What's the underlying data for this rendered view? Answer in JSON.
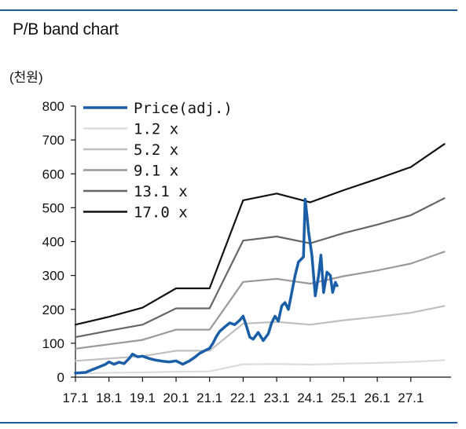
{
  "chart_data": {
    "type": "line",
    "title": "P/B band chart",
    "unit_label": "(천원)",
    "ylim": [
      0,
      800
    ],
    "y_ticks": [
      0,
      100,
      200,
      300,
      400,
      500,
      600,
      700,
      800
    ],
    "x_tick_labels": [
      "17.1",
      "18.1",
      "19.1",
      "20.1",
      "21.1",
      "22.1",
      "23.1",
      "24.1",
      "25.1",
      "26.1",
      "27.1"
    ],
    "xlim": [
      2017.0,
      2028.2
    ],
    "legend_position": "top-left",
    "grid": false,
    "series": [
      {
        "name": "Price(adj.)",
        "color": "#1a5ea8",
        "points": [
          [
            2017.0,
            12
          ],
          [
            2017.3,
            14
          ],
          [
            2017.5,
            22
          ],
          [
            2017.7,
            30
          ],
          [
            2017.9,
            38
          ],
          [
            2018.0,
            45
          ],
          [
            2018.15,
            38
          ],
          [
            2018.3,
            44
          ],
          [
            2018.45,
            40
          ],
          [
            2018.6,
            55
          ],
          [
            2018.7,
            68
          ],
          [
            2018.85,
            60
          ],
          [
            2019.0,
            62
          ],
          [
            2019.2,
            55
          ],
          [
            2019.4,
            50
          ],
          [
            2019.6,
            47
          ],
          [
            2019.8,
            45
          ],
          [
            2020.0,
            48
          ],
          [
            2020.2,
            38
          ],
          [
            2020.4,
            48
          ],
          [
            2020.55,
            58
          ],
          [
            2020.7,
            70
          ],
          [
            2020.85,
            78
          ],
          [
            2021.0,
            85
          ],
          [
            2021.1,
            100
          ],
          [
            2021.2,
            120
          ],
          [
            2021.3,
            135
          ],
          [
            2021.45,
            148
          ],
          [
            2021.6,
            160
          ],
          [
            2021.75,
            155
          ],
          [
            2021.9,
            168
          ],
          [
            2022.0,
            180
          ],
          [
            2022.1,
            150
          ],
          [
            2022.2,
            118
          ],
          [
            2022.3,
            112
          ],
          [
            2022.45,
            132
          ],
          [
            2022.6,
            108
          ],
          [
            2022.75,
            128
          ],
          [
            2022.85,
            160
          ],
          [
            2022.95,
            180
          ],
          [
            2023.05,
            165
          ],
          [
            2023.15,
            210
          ],
          [
            2023.25,
            220
          ],
          [
            2023.35,
            200
          ],
          [
            2023.45,
            250
          ],
          [
            2023.55,
            300
          ],
          [
            2023.65,
            340
          ],
          [
            2023.75,
            350
          ],
          [
            2023.8,
            355
          ],
          [
            2023.85,
            525
          ],
          [
            2023.9,
            480
          ],
          [
            2023.95,
            430
          ],
          [
            2024.05,
            360
          ],
          [
            2024.15,
            240
          ],
          [
            2024.25,
            300
          ],
          [
            2024.32,
            360
          ],
          [
            2024.4,
            250
          ],
          [
            2024.5,
            310
          ],
          [
            2024.6,
            300
          ],
          [
            2024.67,
            250
          ],
          [
            2024.75,
            280
          ],
          [
            2024.8,
            270
          ]
        ]
      },
      {
        "name": "1.2 x",
        "color": "#dcdcdc",
        "points": [
          [
            2017.0,
            11
          ],
          [
            2018.0,
            13
          ],
          [
            2019.0,
            14
          ],
          [
            2020.0,
            16
          ],
          [
            2021.0,
            17
          ],
          [
            2022.0,
            38
          ],
          [
            2023.0,
            39
          ],
          [
            2024.0,
            37
          ],
          [
            2025.0,
            40
          ],
          [
            2026.0,
            42
          ],
          [
            2027.0,
            45
          ],
          [
            2028.0,
            50
          ]
        ]
      },
      {
        "name": "5.2 x",
        "color": "#bfbfbf",
        "points": [
          [
            2017.0,
            48
          ],
          [
            2018.0,
            55
          ],
          [
            2019.0,
            62
          ],
          [
            2020.0,
            78
          ],
          [
            2021.0,
            78
          ],
          [
            2022.0,
            158
          ],
          [
            2023.0,
            163
          ],
          [
            2024.0,
            155
          ],
          [
            2025.0,
            168
          ],
          [
            2026.0,
            178
          ],
          [
            2027.0,
            190
          ],
          [
            2028.0,
            210
          ]
        ]
      },
      {
        "name": "9.1 x",
        "color": "#999999",
        "points": [
          [
            2017.0,
            84
          ],
          [
            2018.0,
            97
          ],
          [
            2019.0,
            110
          ],
          [
            2020.0,
            140
          ],
          [
            2021.0,
            140
          ],
          [
            2022.0,
            281
          ],
          [
            2023.0,
            290
          ],
          [
            2024.0,
            276
          ],
          [
            2025.0,
            298
          ],
          [
            2026.0,
            315
          ],
          [
            2027.0,
            335
          ],
          [
            2028.0,
            370
          ]
        ]
      },
      {
        "name": "13.1 x",
        "color": "#666666",
        "points": [
          [
            2017.0,
            118
          ],
          [
            2018.0,
            137
          ],
          [
            2019.0,
            155
          ],
          [
            2020.0,
            203
          ],
          [
            2021.0,
            203
          ],
          [
            2022.0,
            403
          ],
          [
            2023.0,
            415
          ],
          [
            2024.0,
            395
          ],
          [
            2025.0,
            425
          ],
          [
            2026.0,
            450
          ],
          [
            2027.0,
            478
          ],
          [
            2028.0,
            528
          ]
        ]
      },
      {
        "name": "17.0 x",
        "color": "#111111",
        "points": [
          [
            2017.0,
            155
          ],
          [
            2018.0,
            178
          ],
          [
            2019.0,
            205
          ],
          [
            2020.0,
            262
          ],
          [
            2021.0,
            262
          ],
          [
            2022.0,
            522
          ],
          [
            2023.0,
            542
          ],
          [
            2024.0,
            516
          ],
          [
            2025.0,
            552
          ],
          [
            2026.0,
            585
          ],
          [
            2027.0,
            620
          ],
          [
            2028.0,
            688
          ]
        ]
      }
    ]
  }
}
